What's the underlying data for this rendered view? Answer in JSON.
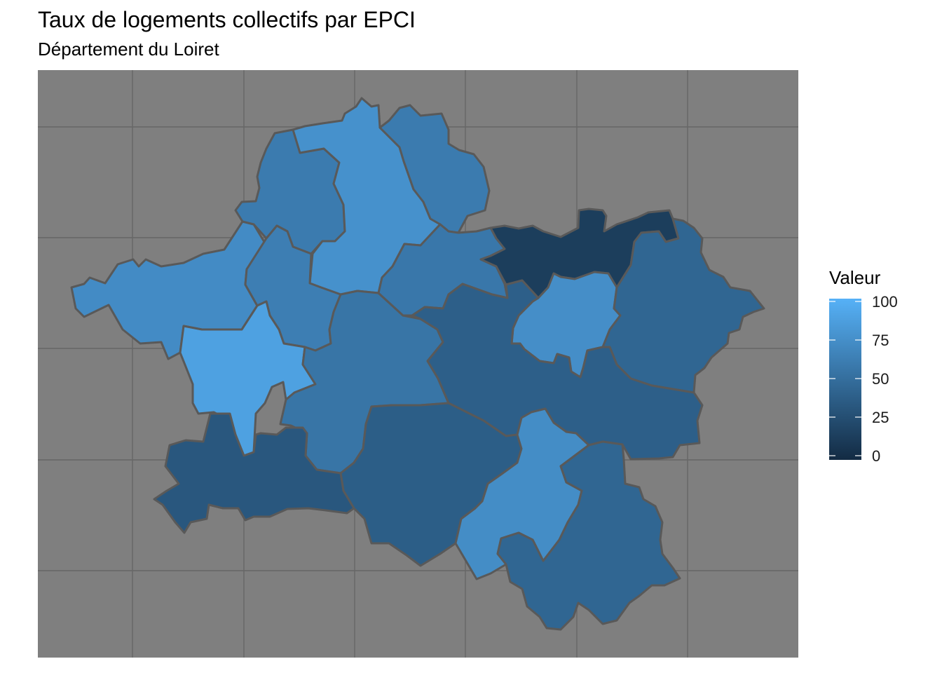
{
  "title": "Taux de logements collectifs par EPCI",
  "subtitle": "Département du Loiret",
  "legend": {
    "title": "Valeur",
    "ticks": [
      {
        "value": 100,
        "label": "100"
      },
      {
        "value": 75,
        "label": "75"
      },
      {
        "value": 50,
        "label": "50"
      },
      {
        "value": 25,
        "label": "25"
      },
      {
        "value": 0,
        "label": "0"
      }
    ],
    "range": [
      0,
      100
    ],
    "color_low": "#132B43",
    "color_high": "#56B1F7"
  },
  "map_style": {
    "panel_background": "#7f7f7f",
    "grid_color": "#666666",
    "border_color": "#595959"
  },
  "regions": [
    {
      "id": "west-large",
      "value": 72
    },
    {
      "id": "nw-tip",
      "value": 60
    },
    {
      "id": "north-center",
      "value": 76
    },
    {
      "id": "north-east",
      "value": 60
    },
    {
      "id": "north-left-inner",
      "value": 62
    },
    {
      "id": "orleans",
      "value": 88
    },
    {
      "id": "center",
      "value": 55
    },
    {
      "id": "east-center-upper",
      "value": 57
    },
    {
      "id": "montargis-belt",
      "value": 14
    },
    {
      "id": "montargis",
      "value": 74
    },
    {
      "id": "east-large",
      "value": 44
    },
    {
      "id": "center-east",
      "value": 39
    },
    {
      "id": "south-center",
      "value": 38
    },
    {
      "id": "south-west",
      "value": 33
    },
    {
      "id": "gien",
      "value": 73
    },
    {
      "id": "south-east",
      "value": 44
    }
  ]
}
